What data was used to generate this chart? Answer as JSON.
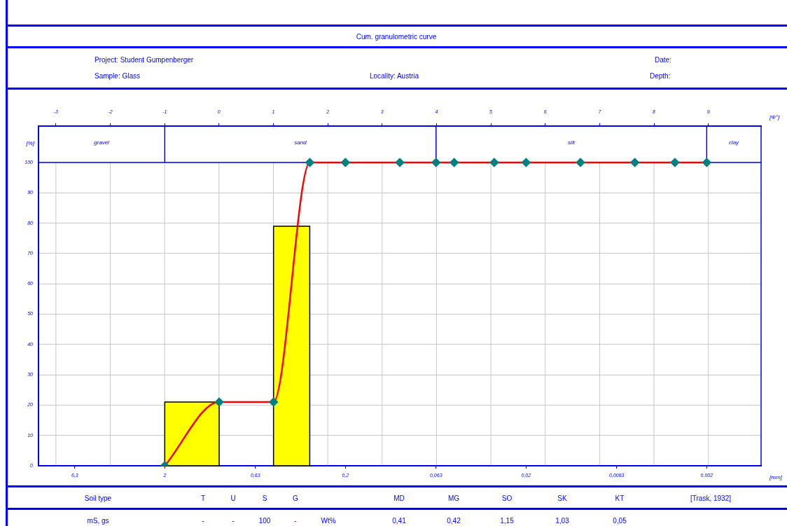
{
  "chart_data": {
    "type": "histogram",
    "title": "Cum. granulometric curve",
    "xlabel": "[mm]",
    "x2label": "[Φ°]",
    "ylabel": "[%]",
    "series": [
      {
        "type": "histogram",
        "bins": [
          2,
          1,
          0.5,
          0.315
        ],
        "values": [
          21,
          0,
          79
        ],
        "color": "#ffff00"
      },
      {
        "type": "line",
        "x": [
          2,
          1,
          0.5,
          0.315,
          0.2,
          0.1,
          0.063,
          0.05,
          0.03,
          0.02,
          0.01,
          0.005,
          0.003,
          0.002
        ],
        "values": [
          0,
          21,
          21,
          100,
          100,
          100,
          100,
          100,
          100,
          100,
          100,
          100,
          100,
          100
        ],
        "color": "#ff0000",
        "colors": [
          "#008080",
          "#008080",
          "#008080",
          "#008080",
          "#008080",
          "#008080",
          "#008080",
          "#008080",
          "#008080",
          "#008080",
          "#008080",
          "#008080",
          "#008080",
          "#008080"
        ]
      }
    ],
    "xlim": [
      10,
      0.001
    ],
    "log": "x",
    "xticks": [
      {
        "value": 6.3,
        "label": "6,3"
      },
      2,
      {
        "value": 0.63,
        "label": "0,63"
      },
      {
        "value": 0.2,
        "label": "0,2"
      },
      {
        "value": 0.063,
        "label": "0,063"
      },
      {
        "value": 0.02,
        "label": "0,02"
      },
      {
        "value": 0.0063,
        "label": "0,0063"
      },
      {
        "value": 0.002,
        "label": "0,002"
      }
    ],
    "x2lim": [
      -3.32,
      9.97
    ],
    "x2ticks": [
      -3,
      -2,
      -1,
      0,
      1,
      2,
      3,
      4,
      5,
      6,
      7,
      8,
      9
    ],
    "ylim": [
      0,
      112
    ],
    "yticks": [
      0,
      10,
      20,
      30,
      40,
      50,
      60,
      70,
      80,
      90,
      100
    ],
    "ref_lines": [
      {
        "axis": "y",
        "value": 100,
        "color": "#0000ff"
      },
      {
        "axis": "x",
        "value": 2,
        "color": "#0000ff"
      },
      {
        "axis": "x",
        "value": 0.063,
        "color": "#0000ff"
      },
      {
        "axis": "x",
        "value": 0.002,
        "color": "#0000ff"
      }
    ],
    "grid": true,
    "marker": "diamond",
    "annotations": [
      "Project:  Student Gumpenberger",
      "Sample:  Glass",
      "Locality:  Austria",
      "Date:",
      "Depth:",
      "Soil type",
      "T",
      "U",
      "S",
      "G",
      "MD",
      "MG",
      "SO",
      "SK",
      "KT",
      "[Trask, 1932]",
      "mS, gs",
      "-",
      "-",
      "100",
      "-",
      "Wt%",
      "0,41",
      "0,42",
      "1,15",
      "1,03",
      "0,05",
      "gravel",
      "sand",
      "silt",
      "clay"
    ]
  }
}
